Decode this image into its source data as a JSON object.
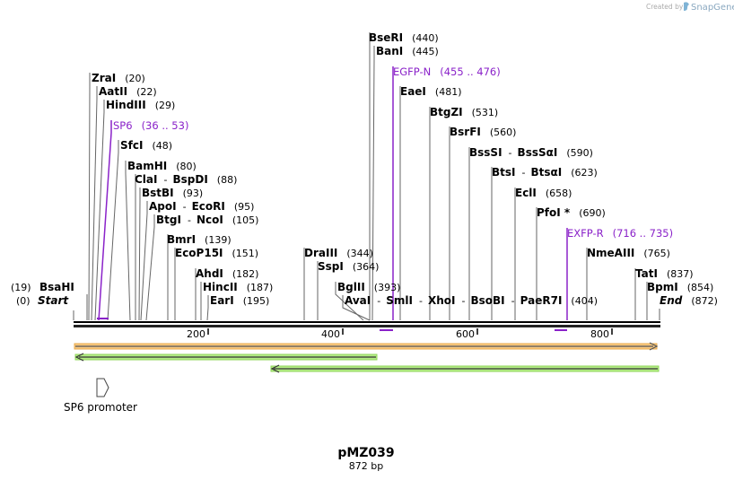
{
  "credit": {
    "prefix": "Created by",
    "brand": "SnapGene"
  },
  "map": {
    "title": "pMZ039",
    "size_label": "872 bp",
    "total_bp": 872,
    "ticks": [
      "200",
      "400",
      "600",
      "800"
    ]
  },
  "labels": [
    {
      "id": "zrai",
      "kind": "site",
      "parts": [
        "ZraI"
      ],
      "pos": "(20)"
    },
    {
      "id": "aatii",
      "kind": "site",
      "parts": [
        "AatII"
      ],
      "pos": "(22)"
    },
    {
      "id": "hindiii",
      "kind": "site",
      "parts": [
        "HindIII"
      ],
      "pos": "(29)"
    },
    {
      "id": "sp6",
      "kind": "primer",
      "parts": [
        "SP6"
      ],
      "pos": "(36 .. 53)"
    },
    {
      "id": "sfci",
      "kind": "site",
      "parts": [
        "SfcI"
      ],
      "pos": "(48)"
    },
    {
      "id": "bamhi",
      "kind": "site",
      "parts": [
        "BamHI"
      ],
      "pos": "(80)"
    },
    {
      "id": "clai",
      "kind": "site",
      "parts": [
        "ClaI",
        "BspDI"
      ],
      "pos": "(88)"
    },
    {
      "id": "bstbi",
      "kind": "site",
      "parts": [
        "BstBI"
      ],
      "pos": "(93)"
    },
    {
      "id": "apoi",
      "kind": "site",
      "parts": [
        "ApoI",
        "EcoRI"
      ],
      "pos": "(95)"
    },
    {
      "id": "btgi",
      "kind": "site",
      "parts": [
        "BtgI",
        "NcoI"
      ],
      "pos": "(105)"
    },
    {
      "id": "bmri",
      "kind": "site",
      "parts": [
        "BmrI"
      ],
      "pos": "(139)"
    },
    {
      "id": "ecop15i",
      "kind": "site",
      "parts": [
        "EcoP15I"
      ],
      "pos": "(151)"
    },
    {
      "id": "ahdi",
      "kind": "site",
      "parts": [
        "AhdI"
      ],
      "pos": "(182)"
    },
    {
      "id": "hincii",
      "kind": "site",
      "parts": [
        "HincII"
      ],
      "pos": "(187)"
    },
    {
      "id": "eari",
      "kind": "site",
      "parts": [
        "EarI"
      ],
      "pos": "(195)"
    },
    {
      "id": "bsahi",
      "kind": "site",
      "parts": [
        "BsaHI"
      ],
      "pos": "(19)",
      "pos_first": true
    },
    {
      "id": "start",
      "kind": "end",
      "parts": [
        "Start"
      ],
      "pos": "(0)",
      "pos_first": true
    },
    {
      "id": "bseri",
      "kind": "site",
      "parts": [
        "BseRI"
      ],
      "pos": "(440)"
    },
    {
      "id": "bani",
      "kind": "site",
      "parts": [
        "BanI"
      ],
      "pos": "(445)"
    },
    {
      "id": "egfpn",
      "kind": "primer",
      "parts": [
        "EGFP-N"
      ],
      "pos": "(455 .. 476)"
    },
    {
      "id": "eaei",
      "kind": "site",
      "parts": [
        "EaeI"
      ],
      "pos": "(481)"
    },
    {
      "id": "btgzi",
      "kind": "site",
      "parts": [
        "BtgZI"
      ],
      "pos": "(531)"
    },
    {
      "id": "bsrfi",
      "kind": "site",
      "parts": [
        "BsrFI"
      ],
      "pos": "(560)"
    },
    {
      "id": "bsssi",
      "kind": "site",
      "parts": [
        "BssSI",
        "BssSαI"
      ],
      "pos": "(590)"
    },
    {
      "id": "btsi",
      "kind": "site",
      "parts": [
        "BtsI",
        "BtsαI"
      ],
      "pos": "(623)"
    },
    {
      "id": "ecli",
      "kind": "site",
      "parts": [
        "EclI"
      ],
      "pos": "(658)"
    },
    {
      "id": "pfoi",
      "kind": "site",
      "parts": [
        "PfoI *"
      ],
      "pos": "(690)"
    },
    {
      "id": "exfpr",
      "kind": "primer",
      "parts": [
        "EXFP-R"
      ],
      "pos": "(716 .. 735)"
    },
    {
      "id": "nmeaiii",
      "kind": "site",
      "parts": [
        "NmeAIII"
      ],
      "pos": "(765)"
    },
    {
      "id": "drai",
      "kind": "site",
      "parts": [
        "DraIII"
      ],
      "pos": "(344)"
    },
    {
      "id": "sspi",
      "kind": "site",
      "parts": [
        "SspI"
      ],
      "pos": "(364)"
    },
    {
      "id": "bglii",
      "kind": "site",
      "parts": [
        "BglII"
      ],
      "pos": "(393)"
    },
    {
      "id": "avai",
      "kind": "site",
      "parts": [
        "AvaI",
        "SmlI",
        "XhoI",
        "BsoBI",
        "PaeR7I"
      ],
      "pos": "(404)"
    },
    {
      "id": "tati",
      "kind": "site",
      "parts": [
        "TatI"
      ],
      "pos": "(837)"
    },
    {
      "id": "bpmi",
      "kind": "site",
      "parts": [
        "BpmI"
      ],
      "pos": "(854)"
    },
    {
      "id": "end",
      "kind": "end",
      "parts": [
        "End"
      ],
      "pos": "(872)"
    }
  ],
  "features": [
    {
      "id": "insert-orange",
      "label": ""
    },
    {
      "id": "arrow-green-1",
      "label": ""
    },
    {
      "id": "arrow-green-2",
      "label": ""
    },
    {
      "id": "sp6-promoter",
      "label": "SP6 promoter"
    }
  ]
}
